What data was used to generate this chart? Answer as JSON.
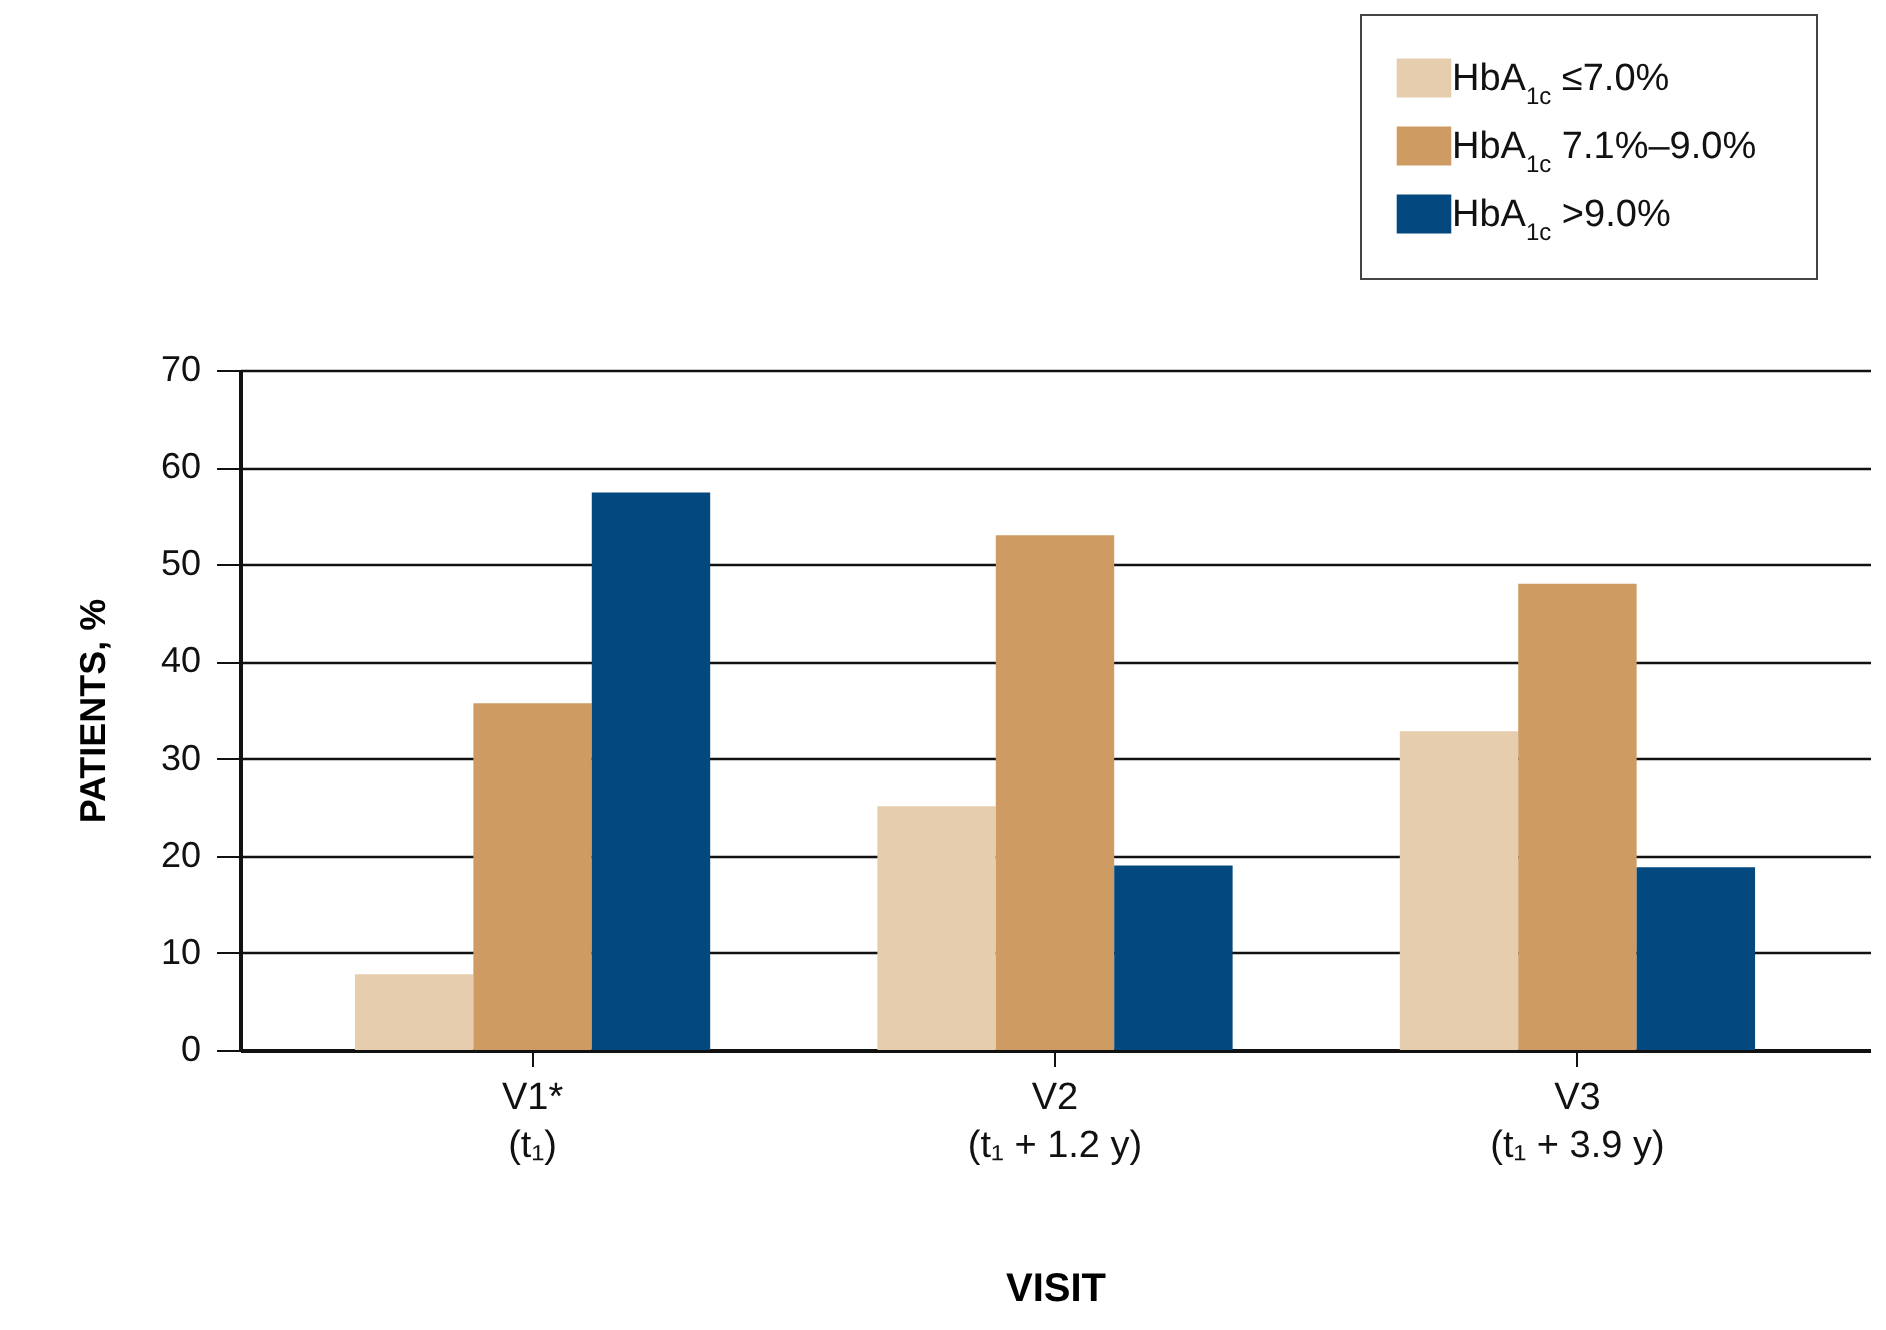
{
  "chart_data": {
    "type": "bar",
    "categories": [
      "V1*\n(t₁)",
      "V2\n(t₁ + 1.2 y)",
      "V3\n(t₁ + 3.9 y)"
    ],
    "series": [
      {
        "name": "HbA$_{1c}$ ≤7.0%",
        "color": "#e6cdae",
        "values": [
          7.8,
          25.1,
          32.8
        ]
      },
      {
        "name": "HbA$_{1c}$ 7.1%–9.0%",
        "color": "#ce9b62",
        "values": [
          35.7,
          53.0,
          48.0
        ]
      },
      {
        "name": "HbA$_{1c}$ >9.0%",
        "color": "#03497f",
        "values": [
          57.4,
          19.0,
          18.8
        ]
      }
    ],
    "xlabel": "VISIT",
    "ylabel": "PATIENTS, %",
    "ylim": [
      0,
      70
    ],
    "yticks": [
      0,
      10,
      20,
      30,
      40,
      50,
      60,
      70
    ],
    "grid": "y",
    "legend": "top right"
  }
}
